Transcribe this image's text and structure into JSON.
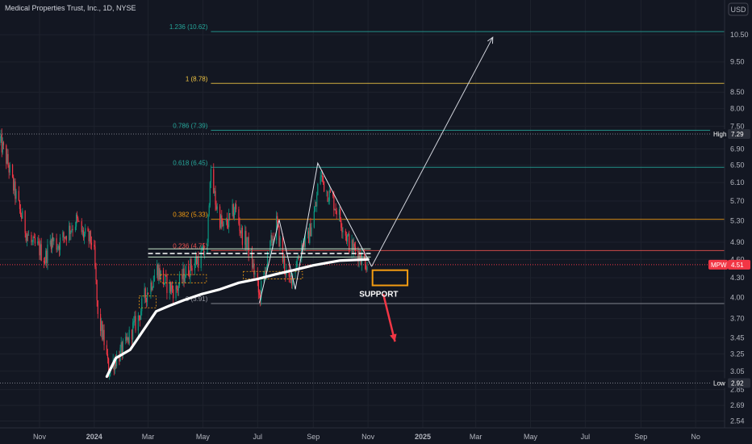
{
  "title": "Medical Properties Trust, Inc., 1D, NYSE",
  "currency_badge": "USD",
  "chart_data": {
    "type": "candlestick",
    "symbol": "MPW",
    "interval": "1D",
    "exchange": "NYSE",
    "y_scale": "log",
    "y_range": [
      2.5,
      11.3
    ],
    "x_range": [
      "2023-09-18",
      "2025-12-05"
    ],
    "y_ticks": [
      "10.50",
      "9.50",
      "8.50",
      "8.00",
      "7.50",
      "7.29",
      "6.90",
      "6.50",
      "6.10",
      "5.70",
      "5.30",
      "4.90",
      "4.60",
      "4.51",
      "4.30",
      "4.00",
      "3.70",
      "3.45",
      "3.25",
      "3.05",
      "2.92",
      "2.85",
      "2.69",
      "2.54"
    ],
    "x_ticks": [
      {
        "label": "Nov",
        "date": "2023-11-01"
      },
      {
        "label": "2024",
        "date": "2024-01-01"
      },
      {
        "label": "Mar",
        "date": "2024-03-01"
      },
      {
        "label": "May",
        "date": "2024-05-01"
      },
      {
        "label": "Jul",
        "date": "2024-07-01"
      },
      {
        "label": "Sep",
        "date": "2024-09-01"
      },
      {
        "label": "Nov",
        "date": "2024-11-01"
      },
      {
        "label": "2025",
        "date": "2025-01-01"
      },
      {
        "label": "Mar",
        "date": "2025-03-01"
      },
      {
        "label": "May",
        "date": "2025-05-01"
      },
      {
        "label": "Jul",
        "date": "2025-07-01"
      },
      {
        "label": "Sep",
        "date": "2025-09-01"
      },
      {
        "label": "No",
        "date": "2025-11-01"
      }
    ],
    "price_path": [
      [
        "2023-09-18",
        7.1
      ],
      [
        "2023-09-26",
        6.6
      ],
      [
        "2023-10-03",
        6.0
      ],
      [
        "2023-10-10",
        5.5
      ],
      [
        "2023-10-17",
        5.1
      ],
      [
        "2023-10-24",
        4.85
      ],
      [
        "2023-10-31",
        4.8
      ],
      [
        "2023-11-07",
        4.6
      ],
      [
        "2023-11-14",
        4.95
      ],
      [
        "2023-11-21",
        4.85
      ],
      [
        "2023-11-28",
        5.0
      ],
      [
        "2023-12-05",
        5.15
      ],
      [
        "2023-12-12",
        5.3
      ],
      [
        "2023-12-19",
        5.05
      ],
      [
        "2023-12-26",
        4.95
      ],
      [
        "2023-12-31",
        4.9
      ],
      [
        "2024-01-05",
        3.7
      ],
      [
        "2024-01-09",
        3.55
      ],
      [
        "2024-01-13",
        3.35
      ],
      [
        "2024-01-17",
        3.05
      ],
      [
        "2024-01-22",
        3.15
      ],
      [
        "2024-01-29",
        3.25
      ],
      [
        "2024-02-05",
        3.35
      ],
      [
        "2024-02-12",
        3.55
      ],
      [
        "2024-02-19",
        3.7
      ],
      [
        "2024-02-26",
        4.0
      ],
      [
        "2024-03-04",
        4.2
      ],
      [
        "2024-03-11",
        4.45
      ],
      [
        "2024-03-18",
        4.25
      ],
      [
        "2024-03-25",
        4.15
      ],
      [
        "2024-04-01",
        4.1
      ],
      [
        "2024-04-08",
        4.3
      ],
      [
        "2024-04-15",
        4.45
      ],
      [
        "2024-04-22",
        4.55
      ],
      [
        "2024-04-29",
        4.65
      ],
      [
        "2024-05-06",
        4.8
      ],
      [
        "2024-05-09",
        6.3
      ],
      [
        "2024-05-16",
        5.6
      ],
      [
        "2024-05-23",
        5.15
      ],
      [
        "2024-05-30",
        5.3
      ],
      [
        "2024-06-06",
        5.55
      ],
      [
        "2024-06-13",
        5.05
      ],
      [
        "2024-06-20",
        4.85
      ],
      [
        "2024-06-27",
        4.4
      ],
      [
        "2024-07-03",
        4.0
      ],
      [
        "2024-07-10",
        4.45
      ],
      [
        "2024-07-17",
        4.95
      ],
      [
        "2024-07-22",
        5.25
      ],
      [
        "2024-07-29",
        4.6
      ],
      [
        "2024-08-05",
        4.2
      ],
      [
        "2024-08-12",
        4.5
      ],
      [
        "2024-08-19",
        4.85
      ],
      [
        "2024-08-26",
        4.95
      ],
      [
        "2024-09-04",
        5.6
      ],
      [
        "2024-09-08",
        6.35
      ],
      [
        "2024-09-15",
        5.95
      ],
      [
        "2024-09-22",
        5.75
      ],
      [
        "2024-09-29",
        5.45
      ],
      [
        "2024-10-06",
        5.1
      ],
      [
        "2024-10-13",
        4.8
      ],
      [
        "2024-10-20",
        4.75
      ],
      [
        "2024-10-27",
        4.6
      ],
      [
        "2024-11-01",
        4.51
      ]
    ],
    "fib_levels": [
      {
        "ratio": "1.236",
        "price": 10.62,
        "label": "1.236 (10.62)",
        "color": "#26a69a"
      },
      {
        "ratio": "1",
        "price": 8.78,
        "label": "1 (8.78)",
        "color": "#f2c744"
      },
      {
        "ratio": "0.786",
        "price": 7.39,
        "label": "0.786 (7.39)",
        "color": "#26a69a"
      },
      {
        "ratio": "0.618",
        "price": 6.45,
        "label": "0.618 (6.45)",
        "color": "#26a69a"
      },
      {
        "ratio": "0.382",
        "price": 5.33,
        "label": "0.382 (5.33)",
        "color": "#f39c12"
      },
      {
        "ratio": "0.236",
        "price": 4.75,
        "label": "0.236 (4.75)",
        "color": "#ef5350"
      },
      {
        "ratio": "0",
        "price": 3.91,
        "label": "0 (3.91)",
        "color": "#9598a1"
      }
    ],
    "high": {
      "label": "High",
      "value": "7.29",
      "price": 7.29
    },
    "low": {
      "label": "Low",
      "value": "2.92",
      "price": 2.92
    },
    "last": {
      "label": "MPW",
      "value": "4.51",
      "price": 4.51
    },
    "annotations": [
      {
        "type": "zigzag",
        "color": "#e0e3eb",
        "points": [
          [
            "2024-07-03",
            3.92
          ],
          [
            "2024-07-25",
            5.32
          ],
          [
            "2024-08-12",
            4.12
          ],
          [
            "2024-09-06",
            6.55
          ],
          [
            "2024-11-05",
            4.48
          ]
        ]
      },
      {
        "type": "arrow",
        "color": "#d1d4dc",
        "from": [
          "2024-11-05",
          4.48
        ],
        "to": [
          "2025-03-20",
          10.4
        ]
      },
      {
        "type": "arrow",
        "color": "#f23645",
        "from": [
          "2024-11-18",
          4.05
        ],
        "to": [
          "2024-12-01",
          3.4
        ]
      },
      {
        "type": "box",
        "color": "#f39c12",
        "x0": "2024-11-06",
        "x1": "2024-12-15",
        "y0": 4.42,
        "y1": 4.18,
        "label": "SUPPORT"
      },
      {
        "type": "curve",
        "color": "#ffffff",
        "points": [
          [
            "2024-01-15",
            2.99
          ],
          [
            "2024-01-25",
            3.2
          ],
          [
            "2024-02-10",
            3.3
          ],
          [
            "2024-02-25",
            3.55
          ],
          [
            "2024-03-10",
            3.8
          ],
          [
            "2024-03-25",
            3.88
          ],
          [
            "2024-04-10",
            3.96
          ],
          [
            "2024-04-30",
            4.05
          ],
          [
            "2024-05-20",
            4.12
          ],
          [
            "2024-06-10",
            4.22
          ],
          [
            "2024-07-01",
            4.28
          ],
          [
            "2024-07-20",
            4.35
          ],
          [
            "2024-08-10",
            4.42
          ],
          [
            "2024-09-01",
            4.5
          ],
          [
            "2024-10-01",
            4.58
          ],
          [
            "2024-11-01",
            4.6
          ]
        ]
      }
    ]
  }
}
